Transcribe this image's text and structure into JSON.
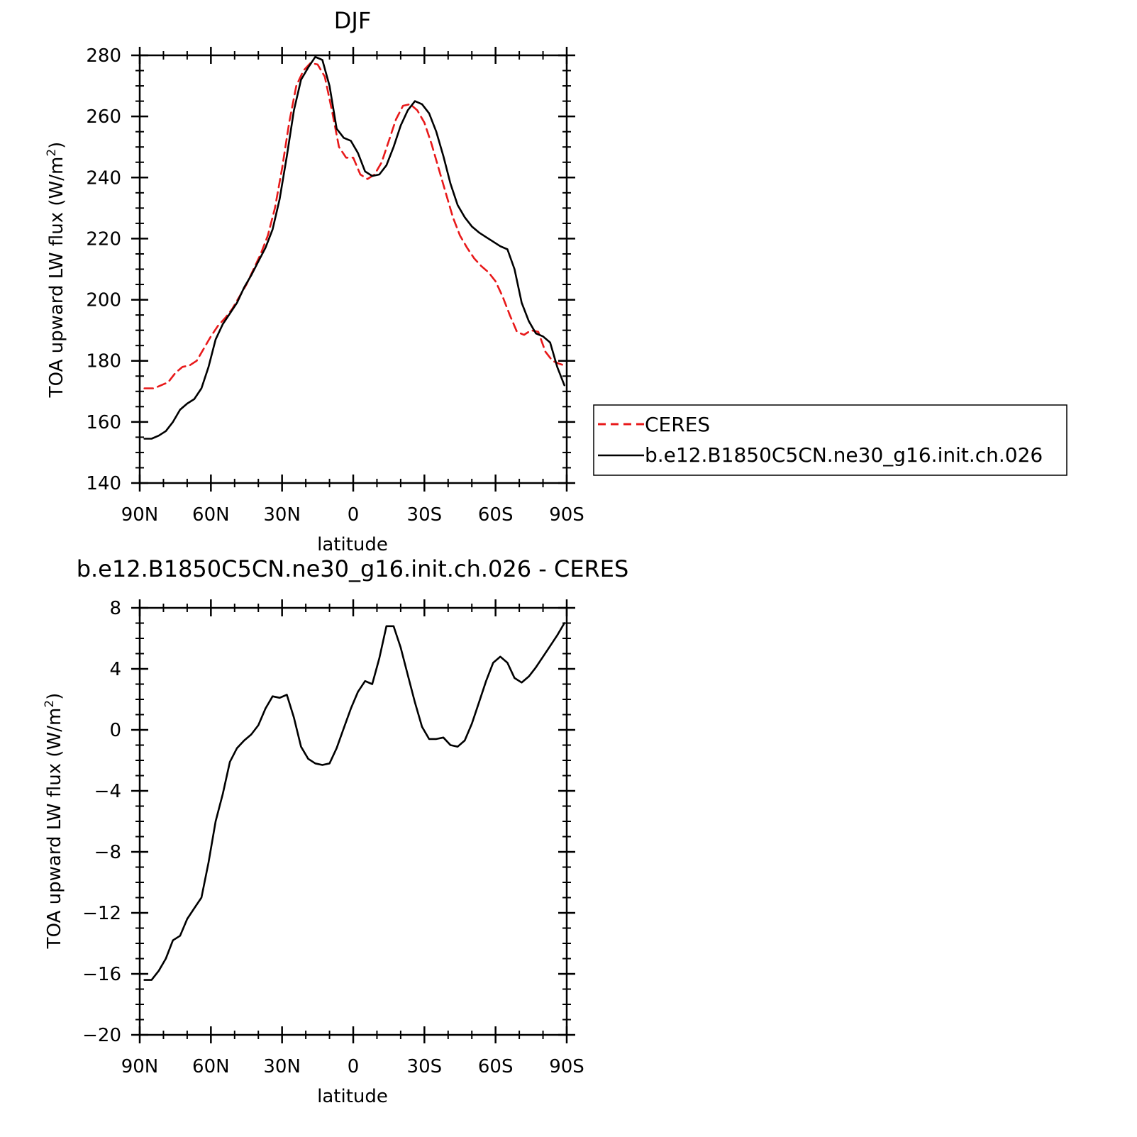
{
  "chart_data": [
    {
      "type": "line",
      "title": "DJF",
      "xlabel": "latitude",
      "ylabel": "TOA upward LW flux (W/m²)",
      "ylabel_main": "TOA upward LW flux (W/m",
      "ylabel_sup": "2",
      "ylabel_end": ")",
      "xlim": [
        90,
        -90
      ],
      "ylim": [
        140,
        280
      ],
      "xticks": [
        90,
        60,
        30,
        0,
        -30,
        -60,
        -90
      ],
      "xtick_labels": [
        "90N",
        "60N",
        "30N",
        "0",
        "30S",
        "60S",
        "90S"
      ],
      "yticks": [
        140,
        160,
        180,
        200,
        220,
        240,
        260,
        280
      ],
      "ytick_labels": [
        "140",
        "160",
        "180",
        "200",
        "220",
        "240",
        "260",
        "280"
      ],
      "legend": {
        "placement": "right"
      },
      "series": [
        {
          "name": "CERES",
          "color": "#e8191a",
          "style": "dashed",
          "x": [
            88,
            84,
            81,
            78,
            75,
            72,
            69,
            66,
            63,
            60,
            57,
            54,
            51,
            48,
            45,
            42,
            39,
            36,
            33,
            30,
            27,
            24,
            21,
            18,
            15,
            12,
            9,
            6,
            3,
            0,
            -3,
            -6,
            -9,
            -12,
            -15,
            -18,
            -21,
            -24,
            -27,
            -30,
            -33,
            -36,
            -39,
            -42,
            -45,
            -48,
            -51,
            -54,
            -57,
            -60,
            -63,
            -66,
            -69,
            -72,
            -75,
            -78,
            -81,
            -84,
            -87,
            -89
          ],
          "y": [
            171,
            171,
            172,
            173,
            176,
            178,
            178.5,
            180,
            184,
            188,
            191.5,
            194,
            197,
            201,
            205,
            210,
            215,
            221,
            230,
            243,
            258,
            270,
            275,
            277.5,
            277,
            273,
            262,
            250,
            246.5,
            246.5,
            241,
            239.5,
            241,
            245,
            252,
            259,
            263.5,
            264,
            262,
            258,
            251,
            243,
            235,
            227,
            221,
            217,
            213.5,
            211,
            209,
            206,
            201,
            195,
            189.5,
            188.5,
            190,
            189.5,
            183,
            180,
            179,
            178.5
          ]
        },
        {
          "name": "b.e12.B1850C5CN.ne30_g16.init.ch.026",
          "color": "#000000",
          "style": "solid",
          "x": [
            88,
            85,
            82,
            79,
            76,
            73,
            70,
            67,
            64,
            61,
            58,
            55,
            52,
            49,
            46,
            43,
            40,
            37,
            34,
            31,
            28,
            25,
            22,
            19,
            16,
            13,
            10,
            7,
            4,
            1,
            -2,
            -5,
            -8,
            -11,
            -14,
            -17,
            -20,
            -23,
            -26,
            -29,
            -32,
            -35,
            -38,
            -41,
            -44,
            -47,
            -50,
            -53,
            -56,
            -59,
            -62,
            -65,
            -68,
            -71,
            -74,
            -77,
            -80,
            -83,
            -86,
            -89
          ],
          "y": [
            154.5,
            154.5,
            155.5,
            157,
            160,
            164,
            166,
            167.5,
            171,
            178,
            187,
            192,
            195.5,
            199,
            204,
            208,
            212.5,
            217,
            223,
            233,
            247,
            262,
            272,
            276,
            279.5,
            278.5,
            270,
            256,
            253,
            252,
            248,
            242,
            240.5,
            241,
            244,
            250,
            257,
            262,
            265,
            264,
            261,
            255,
            247,
            238,
            231,
            227,
            224,
            222,
            220.5,
            219,
            217.5,
            216.5,
            210,
            199,
            193,
            189,
            188,
            186,
            178,
            172
          ]
        }
      ]
    },
    {
      "type": "line",
      "title": "b.e12.B1850C5CN.ne30_g16.init.ch.026 - CERES",
      "xlabel": "latitude",
      "ylabel": "TOA upward LW flux (W/m²)",
      "ylabel_main": "TOA upward LW flux (W/m",
      "ylabel_sup": "2",
      "ylabel_end": ")",
      "xlim": [
        90,
        -90
      ],
      "ylim": [
        -20,
        8
      ],
      "xticks": [
        90,
        60,
        30,
        0,
        -30,
        -60,
        -90
      ],
      "xtick_labels": [
        "90N",
        "60N",
        "30N",
        "0",
        "30S",
        "60S",
        "90S"
      ],
      "yticks": [
        -20,
        -16,
        -12,
        -8,
        -4,
        0,
        4,
        8
      ],
      "ytick_labels": [
        "−20",
        "−16",
        "−12",
        "−8",
        "−4",
        "0",
        "4",
        "8"
      ],
      "series": [
        {
          "name": "",
          "color": "#000000",
          "style": "solid",
          "x": [
            88,
            85,
            82,
            79,
            76,
            73,
            70,
            67,
            64,
            61,
            58,
            55,
            52,
            49,
            46,
            43,
            40,
            37,
            34,
            31,
            28,
            25,
            22,
            19,
            16,
            13,
            10,
            7,
            4,
            1,
            -2,
            -5,
            -8,
            -11,
            -14,
            -17,
            -20,
            -23,
            -26,
            -29,
            -32,
            -35,
            -38,
            -41,
            -44,
            -47,
            -50,
            -53,
            -56,
            -59,
            -62,
            -65,
            -68,
            -71,
            -74,
            -77,
            -80,
            -83,
            -86,
            -89
          ],
          "y": [
            -16.4,
            -16.4,
            -15.8,
            -15,
            -13.8,
            -13.5,
            -12.4,
            -11.7,
            -11,
            -8.7,
            -6,
            -4.2,
            -2.1,
            -1.2,
            -0.7,
            -0.3,
            0.3,
            1.4,
            2.2,
            2.1,
            2.3,
            0.8,
            -1.1,
            -1.9,
            -2.2,
            -2.3,
            -2.2,
            -1.2,
            0.1,
            1.4,
            2.5,
            3.2,
            3,
            4.7,
            6.8,
            6.8,
            5.4,
            3.6,
            1.8,
            0.2,
            -0.6,
            -0.6,
            -0.5,
            -1,
            -1.1,
            -0.7,
            0.4,
            1.8,
            3.2,
            4.4,
            4.8,
            4.4,
            3.4,
            3.1,
            3.5,
            4.1,
            4.8,
            5.5,
            6.2,
            7
          ]
        }
      ]
    }
  ]
}
